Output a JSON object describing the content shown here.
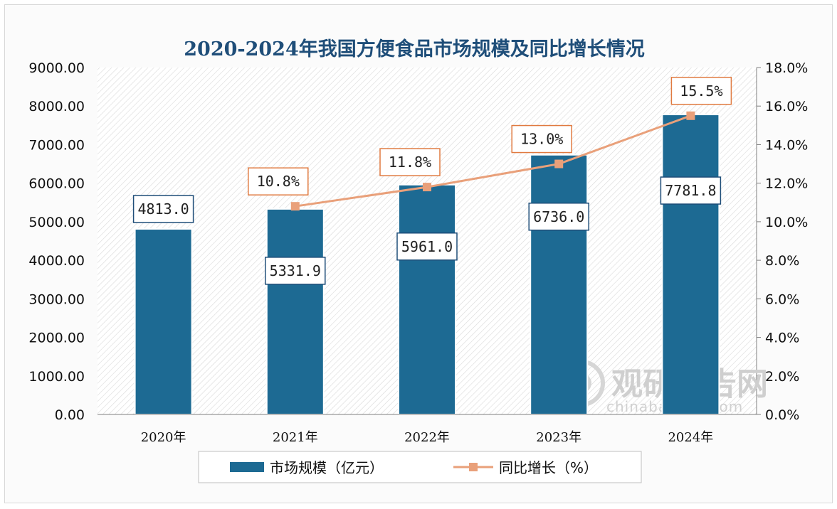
{
  "chart_data": {
    "type": "bar",
    "title": "2020-2024年我国方便食品市场规模及同比增长情况",
    "categories": [
      "2020年",
      "2021年",
      "2022年",
      "2023年",
      "2024年"
    ],
    "series": [
      {
        "name": "市场规模（亿元）",
        "type": "bar",
        "axis": "left",
        "values": [
          4813.0,
          5331.9,
          5961.0,
          6736.0,
          7781.8
        ],
        "labels": [
          "4813.0",
          "5331.9",
          "5961.0",
          "6736.0",
          "7781.8"
        ]
      },
      {
        "name": "同比增长（%）",
        "type": "line",
        "axis": "right",
        "values": [
          null,
          10.8,
          11.8,
          13.0,
          15.5
        ],
        "labels": [
          "",
          "10.8%",
          "11.8%",
          "13.0%",
          "15.5%"
        ]
      }
    ],
    "ylim_left": [
      0,
      9000
    ],
    "ylim_right": [
      0,
      18
    ],
    "yticks_left": [
      "0.00",
      "1000.00",
      "2000.00",
      "3000.00",
      "4000.00",
      "5000.00",
      "6000.00",
      "7000.00",
      "8000.00",
      "9000.00"
    ],
    "yticks_right": [
      "0.0%",
      "2.0%",
      "4.0%",
      "6.0%",
      "8.0%",
      "10.0%",
      "12.0%",
      "14.0%",
      "16.0%",
      "18.0%"
    ],
    "grid": false,
    "legend_position": "bottom",
    "colors": {
      "bar": "#1d6a93",
      "line": "#e9a07a",
      "label_border_bar": "#1f4e79",
      "label_border_line": "#e07a40",
      "title": "#1f4e79"
    }
  },
  "watermark": {
    "brand": "观研报告网",
    "url": "chinabaogao.com"
  }
}
